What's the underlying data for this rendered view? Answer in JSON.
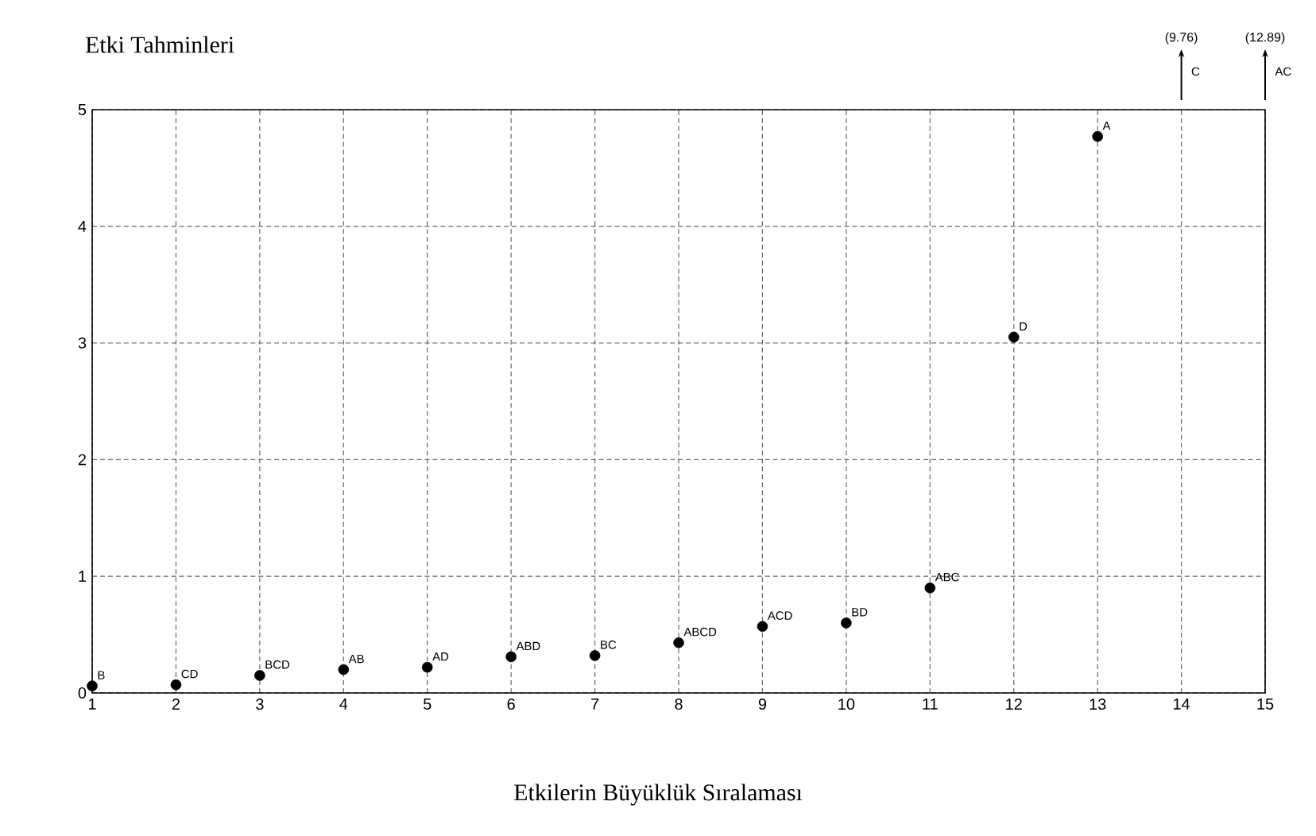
{
  "chart_data": {
    "type": "scatter",
    "title": "Etki Tahminleri",
    "xlabel": "Etkilerin Büyüklük Sıralaması",
    "categories": [
      "1",
      "2",
      "3",
      "4",
      "5",
      "6",
      "7",
      "8",
      "9",
      "10",
      "11",
      "12",
      "13",
      "14",
      "15"
    ],
    "series": [
      {
        "color": "#000000",
        "values": [
          0.06,
          0.07,
          0.15,
          0.2,
          0.22,
          0.31,
          0.32,
          0.43,
          0.57,
          0.6,
          0.9,
          3.05,
          4.77,
          null,
          null
        ]
      }
    ],
    "ylim": [
      0,
      5
    ],
    "yticks": [
      0,
      1,
      2,
      3,
      4,
      5
    ],
    "grid": true,
    "marker": "circle",
    "annotations": [
      {
        "text": "B",
        "x": "1",
        "y": 0.06
      },
      {
        "text": "CD",
        "x": "2",
        "y": 0.07
      },
      {
        "text": "BCD",
        "x": "3",
        "y": 0.15
      },
      {
        "text": "AB",
        "x": "4",
        "y": 0.2
      },
      {
        "text": "AD",
        "x": "5",
        "y": 0.22
      },
      {
        "text": "ABD",
        "x": "6",
        "y": 0.31
      },
      {
        "text": "BC",
        "x": "7",
        "y": 0.32
      },
      {
        "text": "ABCD",
        "x": "8",
        "y": 0.43
      },
      {
        "text": "ACD",
        "x": "9",
        "y": 0.57
      },
      {
        "text": "BD",
        "x": "10",
        "y": 0.6
      },
      {
        "text": "ABC",
        "x": "11",
        "y": 0.9
      },
      {
        "text": "D",
        "x": "12",
        "y": 3.05
      },
      {
        "text": "A",
        "x": "13",
        "y": 4.77
      },
      "(9.76)",
      "C",
      "(12.89)",
      "AC"
    ]
  }
}
